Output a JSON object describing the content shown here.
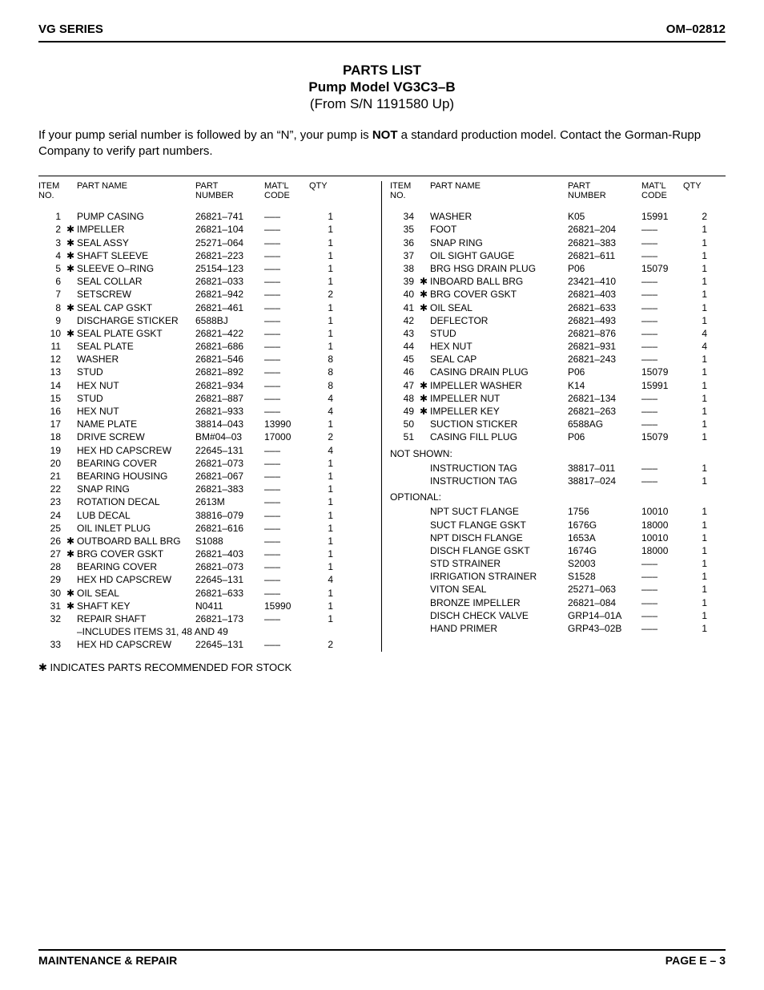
{
  "header": {
    "left": "VG SERIES",
    "right": "OM–02812"
  },
  "title": {
    "line1": "PARTS LIST",
    "line2": "Pump Model VG3C3–B",
    "line3": "(From S/N 1191580 Up)"
  },
  "intro": {
    "pre": "If your pump serial number is followed by an “N”, your pump is ",
    "bold": "NOT",
    "post": " a standard production model. Contact the Gorman-Rupp Company to verify part numbers."
  },
  "thead": {
    "item": "ITEM\nNO.",
    "name": "PART NAME",
    "part": "PART\nNUMBER",
    "matl": "MAT'L\nCODE",
    "qty": "QTY"
  },
  "star_glyph": "✱",
  "dash": "–––",
  "leftRows": [
    {
      "item": "1",
      "star": false,
      "name": "PUMP CASING",
      "part": "26821–741",
      "matl": "–––",
      "qty": "1"
    },
    {
      "item": "2",
      "star": true,
      "name": "IMPELLER",
      "part": "26821–104",
      "matl": "–––",
      "qty": "1"
    },
    {
      "item": "3",
      "star": true,
      "name": "SEAL ASSY",
      "part": "25271–064",
      "matl": "–––",
      "qty": "1"
    },
    {
      "item": "4",
      "star": true,
      "name": "SHAFT SLEEVE",
      "part": "26821–223",
      "matl": "–––",
      "qty": "1"
    },
    {
      "item": "5",
      "star": true,
      "name": "SLEEVE O–RING",
      "part": "25154–123",
      "matl": "–––",
      "qty": "1"
    },
    {
      "item": "6",
      "star": false,
      "name": "SEAL COLLAR",
      "part": "26821–033",
      "matl": "–––",
      "qty": "1"
    },
    {
      "item": "7",
      "star": false,
      "name": "SETSCREW",
      "part": "26821–942",
      "matl": "–––",
      "qty": "2"
    },
    {
      "item": "8",
      "star": true,
      "name": "SEAL CAP GSKT",
      "part": "26821–461",
      "matl": "–––",
      "qty": "1"
    },
    {
      "item": "9",
      "star": false,
      "name": "DISCHARGE STICKER",
      "part": "6588BJ",
      "matl": "–––",
      "qty": "1"
    },
    {
      "item": "10",
      "star": true,
      "name": "SEAL PLATE GSKT",
      "part": "26821–422",
      "matl": "–––",
      "qty": "1"
    },
    {
      "item": "11",
      "star": false,
      "name": "SEAL PLATE",
      "part": "26821–686",
      "matl": "–––",
      "qty": "1"
    },
    {
      "item": "12",
      "star": false,
      "name": "WASHER",
      "part": "26821–546",
      "matl": "–––",
      "qty": "8"
    },
    {
      "item": "13",
      "star": false,
      "name": "STUD",
      "part": "26821–892",
      "matl": "–––",
      "qty": "8"
    },
    {
      "item": "14",
      "star": false,
      "name": "HEX NUT",
      "part": "26821–934",
      "matl": "–––",
      "qty": "8"
    },
    {
      "item": "15",
      "star": false,
      "name": "STUD",
      "part": "26821–887",
      "matl": "–––",
      "qty": "4"
    },
    {
      "item": "16",
      "star": false,
      "name": "HEX NUT",
      "part": "26821–933",
      "matl": "–––",
      "qty": "4"
    },
    {
      "item": "17",
      "star": false,
      "name": "NAME PLATE",
      "part": "38814–043",
      "matl": "13990",
      "qty": "1"
    },
    {
      "item": "18",
      "star": false,
      "name": "DRIVE SCREW",
      "part": "BM#04–03",
      "matl": "17000",
      "qty": "2"
    },
    {
      "item": "19",
      "star": false,
      "name": "HEX HD CAPSCREW",
      "part": "22645–131",
      "matl": "–––",
      "qty": "4"
    },
    {
      "item": "20",
      "star": false,
      "name": "BEARING COVER",
      "part": "26821–073",
      "matl": "–––",
      "qty": "1"
    },
    {
      "item": "21",
      "star": false,
      "name": "BEARING HOUSING",
      "part": "26821–067",
      "matl": "–––",
      "qty": "1"
    },
    {
      "item": "22",
      "star": false,
      "name": "SNAP RING",
      "part": "26821–383",
      "matl": "–––",
      "qty": "1"
    },
    {
      "item": "23",
      "star": false,
      "name": "ROTATION DECAL",
      "part": "2613M",
      "matl": "–––",
      "qty": "1"
    },
    {
      "item": "24",
      "star": false,
      "name": "LUB DECAL",
      "part": "38816–079",
      "matl": "–––",
      "qty": "1"
    },
    {
      "item": "25",
      "star": false,
      "name": "OIL INLET PLUG",
      "part": "26821–616",
      "matl": "–––",
      "qty": "1"
    },
    {
      "item": "26",
      "star": true,
      "name": "OUTBOARD BALL BRG",
      "part": "S1088",
      "matl": "–––",
      "qty": "1"
    },
    {
      "item": "27",
      "star": true,
      "name": "BRG COVER GSKT",
      "part": "26821–403",
      "matl": "–––",
      "qty": "1"
    },
    {
      "item": "28",
      "star": false,
      "name": "BEARING COVER",
      "part": "26821–073",
      "matl": "–––",
      "qty": "1"
    },
    {
      "item": "29",
      "star": false,
      "name": "HEX HD CAPSCREW",
      "part": "22645–131",
      "matl": "–––",
      "qty": "4"
    },
    {
      "item": "30",
      "star": true,
      "name": "OIL SEAL",
      "part": "26821–633",
      "matl": "–––",
      "qty": "1"
    },
    {
      "item": "31",
      "star": true,
      "name": "SHAFT KEY",
      "part": "N0411",
      "matl": "15990",
      "qty": "1"
    },
    {
      "item": "32",
      "star": false,
      "name": "REPAIR SHAFT",
      "part": "26821–173",
      "matl": "–––",
      "qty": "1"
    }
  ],
  "leftNote": "–INCLUDES ITEMS 31, 48 AND 49",
  "leftRows2": [
    {
      "item": "33",
      "star": false,
      "name": "HEX HD CAPSCREW",
      "part": "22645–131",
      "matl": "–––",
      "qty": "2"
    }
  ],
  "rightRows": [
    {
      "item": "34",
      "star": false,
      "name": "WASHER",
      "part": "K05",
      "matl": "15991",
      "qty": "2"
    },
    {
      "item": "35",
      "star": false,
      "name": "FOOT",
      "part": "26821–204",
      "matl": "–––",
      "qty": "1"
    },
    {
      "item": "36",
      "star": false,
      "name": "SNAP RING",
      "part": "26821–383",
      "matl": "–––",
      "qty": "1"
    },
    {
      "item": "37",
      "star": false,
      "name": "OIL SIGHT GAUGE",
      "part": "26821–611",
      "matl": "–––",
      "qty": "1"
    },
    {
      "item": "38",
      "star": false,
      "name": "BRG HSG DRAIN PLUG",
      "part": "P06",
      "matl": "15079",
      "qty": "1"
    },
    {
      "item": "39",
      "star": true,
      "name": "INBOARD BALL BRG",
      "part": "23421–410",
      "matl": "–––",
      "qty": "1"
    },
    {
      "item": "40",
      "star": true,
      "name": "BRG COVER GSKT",
      "part": "26821–403",
      "matl": "–––",
      "qty": "1"
    },
    {
      "item": "41",
      "star": true,
      "name": "OIL SEAL",
      "part": "26821–633",
      "matl": "–––",
      "qty": "1"
    },
    {
      "item": "42",
      "star": false,
      "name": "DEFLECTOR",
      "part": "26821–493",
      "matl": "–––",
      "qty": "1"
    },
    {
      "item": "43",
      "star": false,
      "name": "STUD",
      "part": "26821–876",
      "matl": "–––",
      "qty": "4"
    },
    {
      "item": "44",
      "star": false,
      "name": "HEX NUT",
      "part": "26821–931",
      "matl": "–––",
      "qty": "4"
    },
    {
      "item": "45",
      "star": false,
      "name": "SEAL CAP",
      "part": "26821–243",
      "matl": "–––",
      "qty": "1"
    },
    {
      "item": "46",
      "star": false,
      "name": "CASING DRAIN PLUG",
      "part": "P06",
      "matl": "15079",
      "qty": "1"
    },
    {
      "item": "47",
      "star": true,
      "name": "IMPELLER WASHER",
      "part": "K14",
      "matl": "15991",
      "qty": "1"
    },
    {
      "item": "48",
      "star": true,
      "name": "IMPELLER NUT",
      "part": "26821–134",
      "matl": "–––",
      "qty": "1"
    },
    {
      "item": "49",
      "star": true,
      "name": "IMPELLER  KEY",
      "part": "26821–263",
      "matl": "–––",
      "qty": "1"
    },
    {
      "item": "50",
      "star": false,
      "name": "SUCTION STICKER",
      "part": "6588AG",
      "matl": "–––",
      "qty": "1"
    },
    {
      "item": "51",
      "star": false,
      "name": "CASING FILL PLUG",
      "part": "P06",
      "matl": "15079",
      "qty": "1"
    }
  ],
  "notShownLabel": "NOT SHOWN:",
  "notShownRows": [
    {
      "item": "",
      "star": false,
      "name": "INSTRUCTION TAG",
      "part": "38817–011",
      "matl": "–––",
      "qty": "1"
    },
    {
      "item": "",
      "star": false,
      "name": "INSTRUCTION TAG",
      "part": "38817–024",
      "matl": "–––",
      "qty": "1"
    }
  ],
  "optionalLabel": "OPTIONAL:",
  "optionalRows": [
    {
      "item": "",
      "star": false,
      "name": "NPT SUCT FLANGE",
      "part": "1756",
      "matl": "10010",
      "qty": "1"
    },
    {
      "item": "",
      "star": false,
      "name": "SUCT FLANGE GSKT",
      "part": "1676G",
      "matl": "18000",
      "qty": "1"
    },
    {
      "item": "",
      "star": false,
      "name": "NPT DISCH FLANGE",
      "part": "1653A",
      "matl": "10010",
      "qty": "1"
    },
    {
      "item": "",
      "star": false,
      "name": "DISCH FLANGE GSKT",
      "part": "1674G",
      "matl": "18000",
      "qty": "1"
    },
    {
      "item": "",
      "star": false,
      "name": "STD STRAINER",
      "part": "S2003",
      "matl": "–––",
      "qty": "1"
    },
    {
      "item": "",
      "star": false,
      "name": "IRRIGATION STRAINER",
      "part": "S1528",
      "matl": "–––",
      "qty": "1"
    },
    {
      "item": "",
      "star": false,
      "name": "VITON SEAL",
      "part": "25271–063",
      "matl": "–––",
      "qty": "1"
    },
    {
      "item": "",
      "star": false,
      "name": "BRONZE IMPELLER",
      "part": "26821–084",
      "matl": "–––",
      "qty": "1"
    },
    {
      "item": "",
      "star": false,
      "name": "DISCH CHECK VALVE",
      "part": "GRP14–01A",
      "matl": "–––",
      "qty": "1"
    },
    {
      "item": "",
      "star": false,
      "name": "HAND PRIMER",
      "part": "GRP43–02B",
      "matl": "–––",
      "qty": "1"
    }
  ],
  "stockNote": " INDICATES PARTS RECOMMENDED FOR STOCK",
  "footer": {
    "left": "MAINTENANCE & REPAIR",
    "right": "PAGE E – 3"
  }
}
